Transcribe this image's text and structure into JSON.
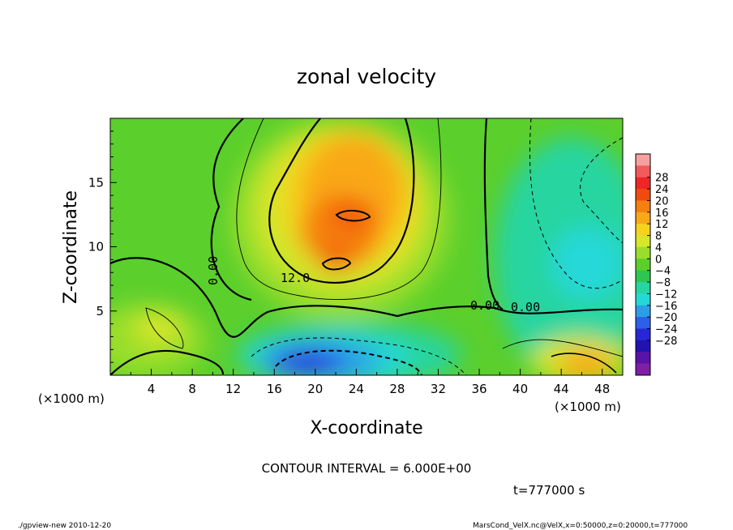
{
  "chart_data": {
    "type": "heatmap",
    "title": "zonal velocity",
    "xlabel": "X-coordinate",
    "ylabel": "Z-coordinate",
    "x_unit_label": "(×1000 m)",
    "y_unit_label": "(×1000 m)",
    "xlim": [
      0,
      50
    ],
    "ylim": [
      0,
      20
    ],
    "x_ticks": [
      4,
      8,
      12,
      16,
      20,
      24,
      28,
      32,
      36,
      40,
      44,
      48
    ],
    "y_ticks": [
      5,
      10,
      15
    ],
    "colorbar": {
      "labels": [
        28,
        24,
        20,
        16,
        12,
        8,
        4,
        0,
        -4,
        -8,
        -12,
        -16,
        -20,
        -24,
        -28
      ],
      "colors": [
        "#f7a0a0",
        "#f25a5a",
        "#ee2626",
        "#f04a10",
        "#f57f10",
        "#f9a818",
        "#f6d21e",
        "#d6e629",
        "#98de2a",
        "#5bcf2c",
        "#2ec652",
        "#27d5a0",
        "#25d8d8",
        "#2c9ee8",
        "#2d5fe8",
        "#2727d6",
        "#2212b0",
        "#5a13a8",
        "#7e1fa6"
      ]
    },
    "contour_labels": [
      "12.0",
      "0.00",
      "0.00",
      "0.00"
    ],
    "contour_interval_text": "CONTOUR INTERVAL = 6.000E+00",
    "time_text": "t=777000  s",
    "footer_left": "./gpview-new  2010-12-20",
    "footer_right": "MarsCond_VelX.nc@VelX,x=0:50000,z=0:20000,t=777000"
  }
}
